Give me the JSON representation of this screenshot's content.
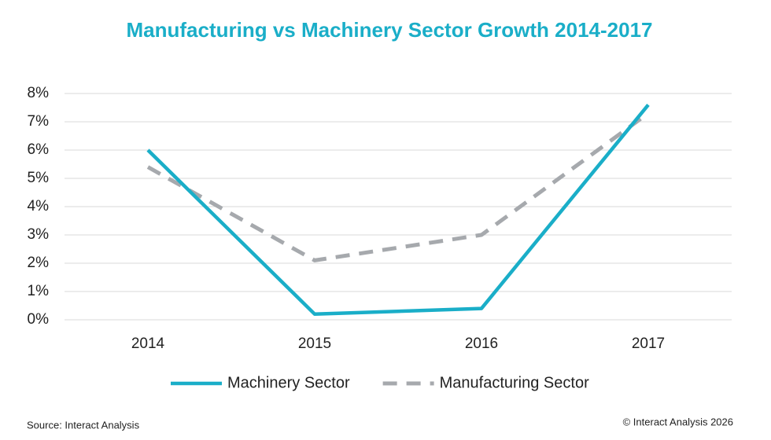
{
  "chart_data": {
    "type": "line",
    "title": "Manufacturing vs Machinery Sector Growth 2014-2017",
    "categories": [
      "2014",
      "2015",
      "2016",
      "2017"
    ],
    "series": [
      {
        "name": "Machinery Sector",
        "color": "#1aaec8",
        "dashed": false,
        "values": [
          6.0,
          0.2,
          0.4,
          7.6
        ]
      },
      {
        "name": "Manufacturing Sector",
        "color": "#a6a9ad",
        "dashed": true,
        "values": [
          5.4,
          2.1,
          3.0,
          7.3
        ]
      }
    ],
    "ylim": [
      0,
      8
    ],
    "yticks": [
      {
        "value": 0,
        "label": "0%"
      },
      {
        "value": 1,
        "label": "1%"
      },
      {
        "value": 2,
        "label": "2%"
      },
      {
        "value": 3,
        "label": "3%"
      },
      {
        "value": 4,
        "label": "4%"
      },
      {
        "value": 5,
        "label": "5%"
      },
      {
        "value": 6,
        "label": "6%"
      },
      {
        "value": 7,
        "label": "7%"
      },
      {
        "value": 8,
        "label": "8%"
      }
    ],
    "grid": true,
    "legend": "bottom",
    "source": "Source: Interact Analysis",
    "copyright": "© Interact Analysis 2026"
  }
}
